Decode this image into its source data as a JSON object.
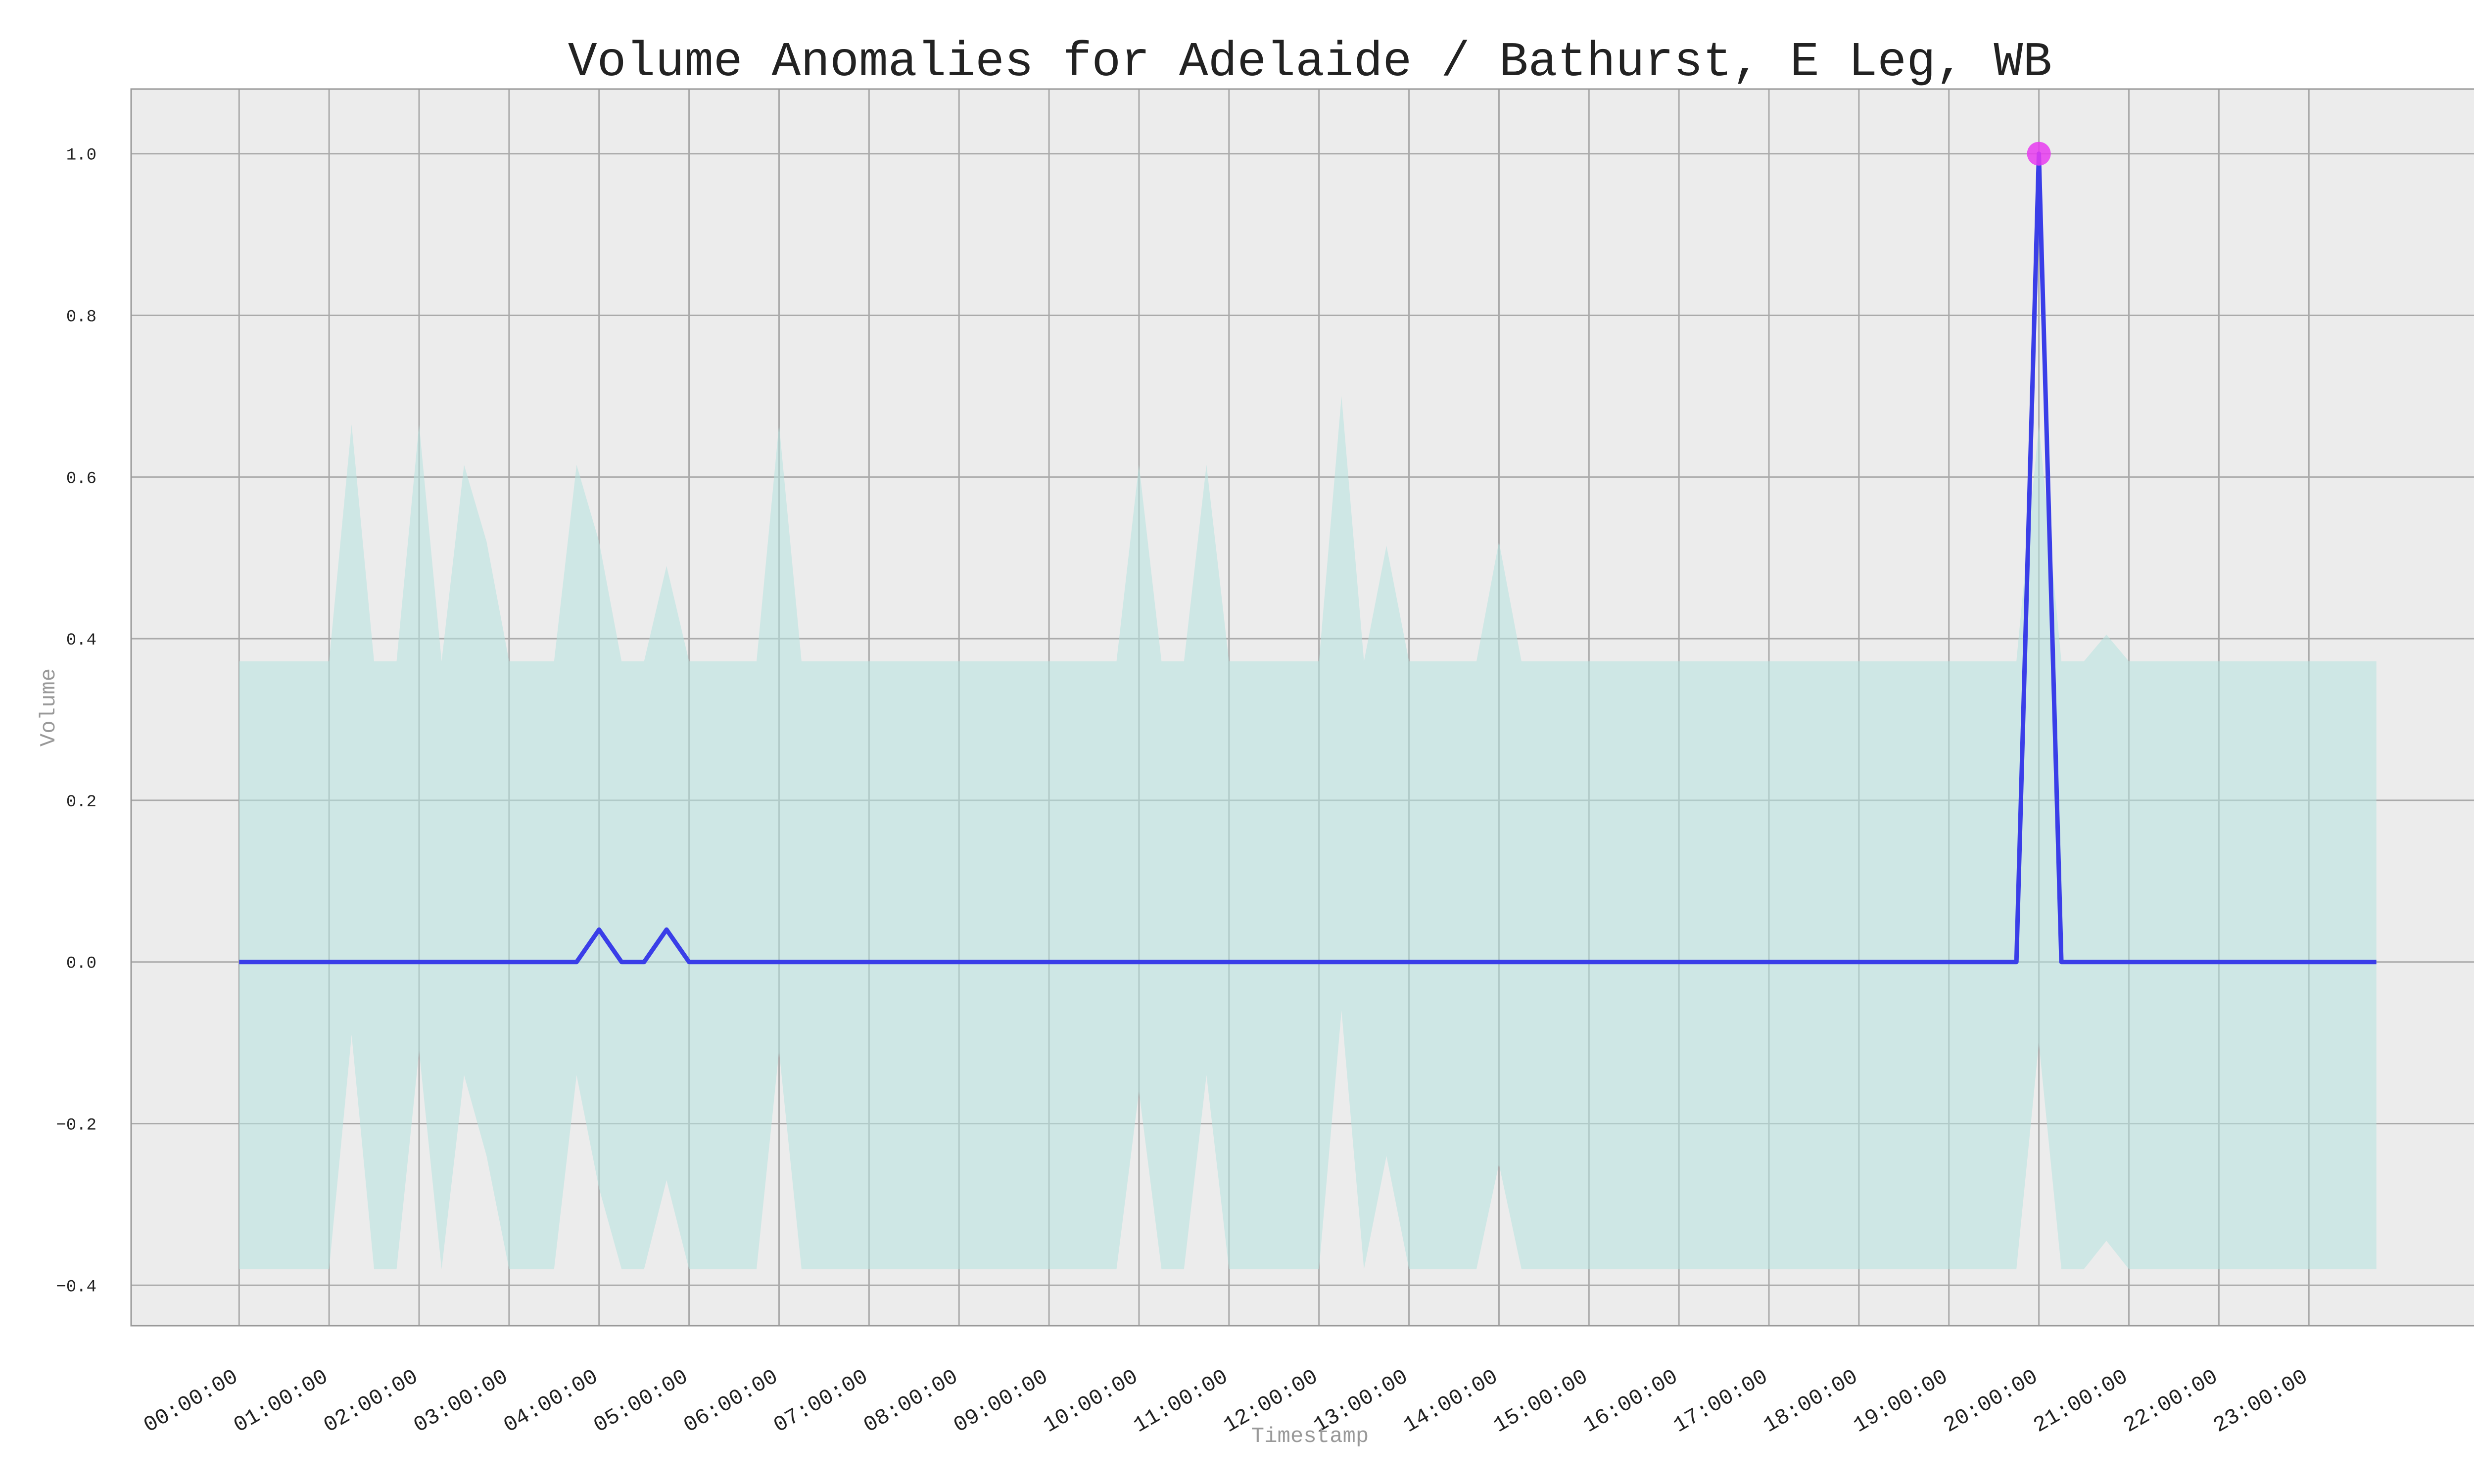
{
  "chart_data": {
    "type": "line",
    "title": "Volume Anomalies for Adelaide / Bathurst, E Leg, WB",
    "xlabel": "Timestamp",
    "ylabel": "Volume",
    "ylim": [
      -0.45,
      1.08
    ],
    "yticks": [
      -0.4,
      -0.2,
      0.0,
      0.2,
      0.4,
      0.6,
      0.8,
      1.0
    ],
    "ytick_labels": [
      "−0.4",
      "−0.2",
      "0.0",
      "0.2",
      "0.4",
      "0.6",
      "0.8",
      "1.0"
    ],
    "x_unit": "hours",
    "xlim": [
      -1.2,
      25.0
    ],
    "xticks": [
      0,
      1,
      2,
      3,
      4,
      5,
      6,
      7,
      8,
      9,
      10,
      11,
      12,
      13,
      14,
      15,
      16,
      17,
      18,
      19,
      20,
      21,
      22,
      23
    ],
    "xtick_labels": [
      "00:00:00",
      "01:00:00",
      "02:00:00",
      "03:00:00",
      "04:00:00",
      "05:00:00",
      "06:00:00",
      "07:00:00",
      "08:00:00",
      "09:00:00",
      "10:00:00",
      "11:00:00",
      "12:00:00",
      "13:00:00",
      "14:00:00",
      "15:00:00",
      "16:00:00",
      "17:00:00",
      "18:00:00",
      "19:00:00",
      "20:00:00",
      "21:00:00",
      "22:00:00",
      "23:00:00"
    ],
    "grid": true,
    "series": [
      {
        "values": [
          [
            0,
            0
          ],
          [
            3.75,
            0
          ],
          [
            4,
            0.04
          ],
          [
            4.25,
            0
          ],
          [
            4.5,
            0
          ],
          [
            4.75,
            0.04
          ],
          [
            5,
            0
          ],
          [
            19.75,
            0
          ],
          [
            20,
            1.0
          ],
          [
            20.25,
            0
          ],
          [
            23.75,
            0
          ]
        ],
        "color": "#3a3ee8"
      }
    ],
    "band": {
      "upper": [
        [
          0,
          0.372
        ],
        [
          1,
          0.372
        ],
        [
          1.25,
          0.665
        ],
        [
          1.5,
          0.372
        ],
        [
          1.75,
          0.372
        ],
        [
          2,
          0.665
        ],
        [
          2.25,
          0.372
        ],
        [
          2.5,
          0.615
        ],
        [
          2.75,
          0.52
        ],
        [
          3,
          0.372
        ],
        [
          3.5,
          0.372
        ],
        [
          3.75,
          0.615
        ],
        [
          4,
          0.52
        ],
        [
          4.25,
          0.372
        ],
        [
          4.5,
          0.372
        ],
        [
          4.75,
          0.49
        ],
        [
          5,
          0.372
        ],
        [
          5.75,
          0.372
        ],
        [
          6,
          0.665
        ],
        [
          6.25,
          0.372
        ],
        [
          9.75,
          0.372
        ],
        [
          10,
          0.615
        ],
        [
          10.25,
          0.372
        ],
        [
          10.5,
          0.372
        ],
        [
          10.75,
          0.615
        ],
        [
          11,
          0.372
        ],
        [
          12,
          0.372
        ],
        [
          12.25,
          0.7
        ],
        [
          12.5,
          0.372
        ],
        [
          12.75,
          0.515
        ],
        [
          13,
          0.372
        ],
        [
          13.75,
          0.372
        ],
        [
          14,
          0.52
        ],
        [
          14.25,
          0.372
        ],
        [
          19.75,
          0.372
        ],
        [
          20,
          0.665
        ],
        [
          20.25,
          0.372
        ],
        [
          20.5,
          0.372
        ],
        [
          20.75,
          0.405
        ],
        [
          21,
          0.372
        ],
        [
          23.75,
          0.372
        ]
      ],
      "lower": [
        [
          0,
          -0.38
        ],
        [
          1,
          -0.38
        ],
        [
          1.25,
          -0.09
        ],
        [
          1.5,
          -0.38
        ],
        [
          1.75,
          -0.38
        ],
        [
          2,
          -0.11
        ],
        [
          2.25,
          -0.38
        ],
        [
          2.5,
          -0.14
        ],
        [
          2.75,
          -0.24
        ],
        [
          3,
          -0.38
        ],
        [
          3.5,
          -0.38
        ],
        [
          3.75,
          -0.14
        ],
        [
          4,
          -0.28
        ],
        [
          4.25,
          -0.38
        ],
        [
          4.5,
          -0.38
        ],
        [
          4.75,
          -0.27
        ],
        [
          5,
          -0.38
        ],
        [
          5.75,
          -0.38
        ],
        [
          6,
          -0.11
        ],
        [
          6.25,
          -0.38
        ],
        [
          9.75,
          -0.38
        ],
        [
          10,
          -0.16
        ],
        [
          10.25,
          -0.38
        ],
        [
          10.5,
          -0.38
        ],
        [
          10.75,
          -0.14
        ],
        [
          11,
          -0.38
        ],
        [
          12,
          -0.38
        ],
        [
          12.25,
          -0.06
        ],
        [
          12.5,
          -0.38
        ],
        [
          12.75,
          -0.24
        ],
        [
          13,
          -0.38
        ],
        [
          13.75,
          -0.38
        ],
        [
          14,
          -0.25
        ],
        [
          14.25,
          -0.38
        ],
        [
          19.75,
          -0.38
        ],
        [
          20,
          -0.1
        ],
        [
          20.25,
          -0.38
        ],
        [
          20.5,
          -0.38
        ],
        [
          20.75,
          -0.345
        ],
        [
          21,
          -0.38
        ],
        [
          23.75,
          -0.38
        ]
      ],
      "color": "#b7e3e0"
    },
    "anomalies": [
      {
        "x": 20,
        "y": 1.0,
        "color": "#e83cf0"
      }
    ],
    "colors": {
      "plot_background": "#ececec",
      "grid": "#aaaaaa",
      "axes_frame": "#999999",
      "tick_text": "#222222",
      "label_text": "#999999",
      "title_text": "#222222"
    }
  }
}
